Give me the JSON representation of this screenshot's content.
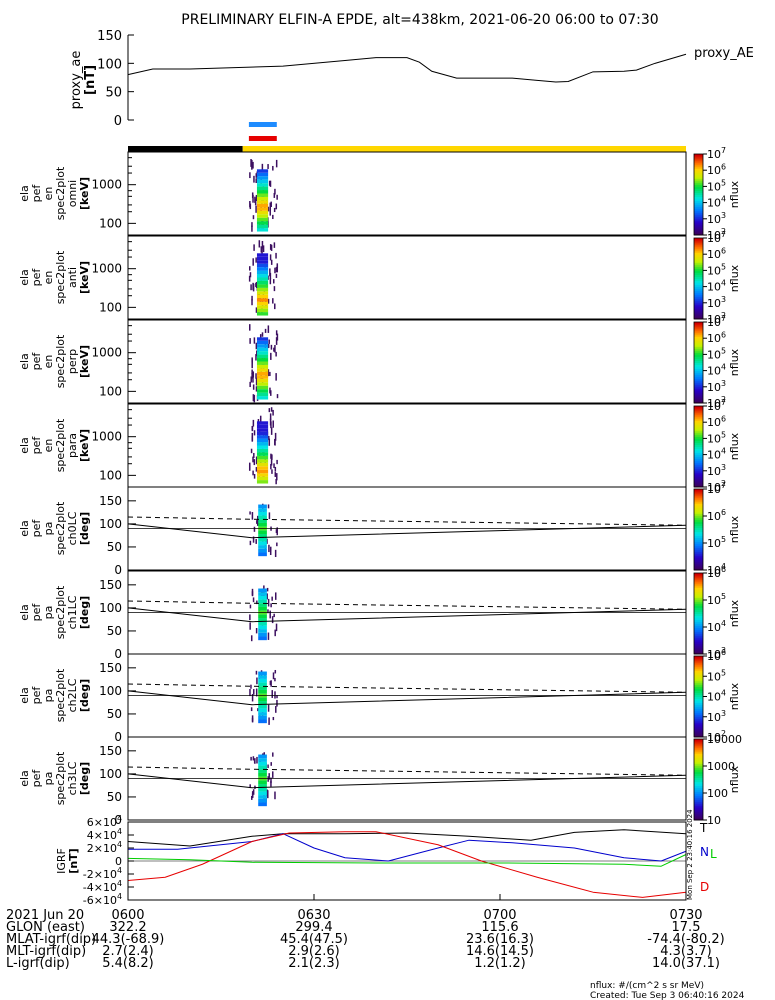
{
  "title": "PRELIMINARY ELFIN-A EPDE, alt=438km, 2021-06-20 06:00 to 07:30",
  "colorbar_unit": "nflux",
  "footer": {
    "units": "nflux: #/(cm^2 s sr MeV)",
    "created": "Created: Tue Sep  3 06:40:16 2024",
    "vertical_stamp": "Mon Sep  2 23:40:16 2024"
  },
  "ephemeris": {
    "times": [
      "0600",
      "0630",
      "0700",
      "0730"
    ],
    "rows": [
      {
        "label": "2021 Jun 20",
        "values": [
          "0600",
          "0630",
          "0700",
          "0730"
        ]
      },
      {
        "label": "GLON (east)",
        "values": [
          "322.2",
          "299.4",
          "115.6",
          "17.5"
        ]
      },
      {
        "label": "MLAT-igrf(dip)",
        "values": [
          "44.3(-68.9)",
          "45.4(47.5)",
          "23.6(16.3)",
          "-74.4(-80.2)"
        ]
      },
      {
        "label": "MLT-igrf(dip)",
        "values": [
          "2.7(2.4)",
          "2.9(2.6)",
          "14.6(14.5)",
          "4.3(3.7)"
        ]
      },
      {
        "label": "L-igrf(dip)",
        "values": [
          "5.4(8.2)",
          "2.1(2.3)",
          "1.2(1.2)",
          "14.0(37.1)"
        ]
      }
    ]
  },
  "chart_data": [
    {
      "type": "line",
      "name": "proxy_ae",
      "ylabel": [
        "proxy_ae",
        "[nT]"
      ],
      "legend": "proxy_AE",
      "ylim": [
        0,
        150
      ],
      "yticks": [
        "0",
        "50",
        "100",
        "150"
      ],
      "x_minutes": [
        0,
        4,
        10,
        25,
        35,
        40,
        45,
        47,
        49,
        53,
        56,
        58,
        62,
        66,
        69,
        71,
        75,
        80,
        82,
        85,
        90
      ],
      "values": [
        80,
        90,
        90,
        95,
        105,
        110,
        110,
        102,
        86,
        74,
        74,
        74,
        74,
        70,
        67,
        68,
        85,
        86,
        88,
        100,
        116
      ],
      "color": "#000000"
    },
    {
      "type": "bar",
      "name": "status-bars",
      "segments": [
        {
          "start_min": 0,
          "end_min": 18.5,
          "color": "#000000"
        },
        {
          "start_min": 18.5,
          "end_min": 90,
          "color": "#ffd700"
        }
      ],
      "indicators": [
        {
          "start_min": 19.5,
          "end_min": 24.0,
          "color": "#1e8cff"
        },
        {
          "start_min": 19.5,
          "end_min": 24.0,
          "color": "#e60000"
        }
      ]
    },
    {
      "type": "heatmap",
      "name": "spectrogram-energy-omni",
      "ylabel": [
        "ela",
        "pef",
        "en",
        "spec2plot",
        "omni",
        "[keV]"
      ],
      "yaxis": "log",
      "ylim_keV": [
        50,
        7000
      ],
      "yticks": [
        "100",
        "1000"
      ],
      "colorbar": {
        "min_exp": 2,
        "max_exp": 7,
        "labels": [
          "10^2",
          "10^3",
          "10^4",
          "10^5",
          "10^6",
          "10^7"
        ]
      },
      "burst_x_minutes": [
        19.5,
        24.0
      ],
      "peak_energy_keV": [
        100,
        700
      ]
    },
    {
      "type": "heatmap",
      "name": "spectrogram-energy-anti",
      "ylabel": [
        "ela",
        "pef",
        "en",
        "spec2plot",
        "anti",
        "[keV]"
      ],
      "yaxis": "log",
      "ylim_keV": [
        50,
        7000
      ],
      "yticks": [
        "100",
        "1000"
      ],
      "colorbar": {
        "min_exp": 2,
        "max_exp": 7,
        "labels": [
          "10^2",
          "10^3",
          "10^4",
          "10^5",
          "10^6",
          "10^7"
        ]
      },
      "burst_x_minutes": [
        19.5,
        24.0
      ],
      "peak_energy_keV": [
        80,
        300
      ]
    },
    {
      "type": "heatmap",
      "name": "spectrogram-energy-perp",
      "ylabel": [
        "ela",
        "pef",
        "en",
        "spec2plot",
        "perp",
        "[keV]"
      ],
      "yaxis": "log",
      "ylim_keV": [
        50,
        7000
      ],
      "yticks": [
        "100",
        "1000"
      ],
      "colorbar": {
        "min_exp": 2,
        "max_exp": 7,
        "labels": [
          "10^2",
          "10^3",
          "10^4",
          "10^5",
          "10^6",
          "10^7"
        ]
      },
      "burst_x_minutes": [
        19.5,
        24.0
      ],
      "peak_energy_keV": [
        100,
        700
      ]
    },
    {
      "type": "heatmap",
      "name": "spectrogram-energy-para",
      "ylabel": [
        "ela",
        "pef",
        "en",
        "spec2plot",
        "para",
        "[keV]"
      ],
      "yaxis": "log",
      "ylim_keV": [
        50,
        7000
      ],
      "yticks": [
        "100",
        "1000"
      ],
      "colorbar": {
        "min_exp": 2,
        "max_exp": 7,
        "labels": [
          "10^2",
          "10^3",
          "10^4",
          "10^5",
          "10^6",
          "10^7"
        ]
      },
      "burst_x_minutes": [
        19.5,
        24.0
      ],
      "peak_energy_keV": [
        70,
        250
      ]
    },
    {
      "type": "heatmap",
      "name": "spectrogram-pitch-ch0LC",
      "ylabel": [
        "ela",
        "pef",
        "pa",
        "spec2plot",
        "ch0LC",
        "[deg]"
      ],
      "ylim_deg": [
        0,
        180
      ],
      "yticks": [
        "0",
        "50",
        "100",
        "150"
      ],
      "colorbar": {
        "min_exp": 4,
        "max_exp": 7,
        "labels": [
          "10^4",
          "10^5",
          "10^6",
          "10^7"
        ]
      },
      "burst_x_minutes": [
        19.5,
        24.0
      ],
      "lines": {
        "solid": {
          "x_minutes": [
            0,
            20,
            90
          ],
          "deg": [
            100,
            70,
            97
          ]
        },
        "dashed": {
          "x_minutes": [
            0,
            20,
            90
          ],
          "deg": [
            115,
            110,
            97
          ]
        }
      }
    },
    {
      "type": "heatmap",
      "name": "spectrogram-pitch-ch1LC",
      "ylabel": [
        "ela",
        "pef",
        "pa",
        "spec2plot",
        "ch1LC",
        "[deg]"
      ],
      "ylim_deg": [
        0,
        180
      ],
      "yticks": [
        "0",
        "50",
        "100",
        "150"
      ],
      "colorbar": {
        "min_exp": 3,
        "max_exp": 6,
        "labels": [
          "10^3",
          "10^4",
          "10^5",
          "10^6"
        ]
      },
      "burst_x_minutes": [
        19.5,
        24.0
      ],
      "lines": {
        "solid": {
          "x_minutes": [
            0,
            20,
            90
          ],
          "deg": [
            100,
            70,
            97
          ]
        },
        "dashed": {
          "x_minutes": [
            0,
            20,
            90
          ],
          "deg": [
            115,
            110,
            97
          ]
        }
      }
    },
    {
      "type": "heatmap",
      "name": "spectrogram-pitch-ch2LC",
      "ylabel": [
        "ela",
        "pef",
        "pa",
        "spec2plot",
        "ch2LC",
        "[deg]"
      ],
      "ylim_deg": [
        0,
        180
      ],
      "yticks": [
        "0",
        "50",
        "100",
        "150"
      ],
      "colorbar": {
        "min_exp": 2,
        "max_exp": 6,
        "labels": [
          "10^2",
          "10^3",
          "10^4",
          "10^5",
          "10^6"
        ]
      },
      "burst_x_minutes": [
        19.5,
        24.0
      ],
      "lines": {
        "solid": {
          "x_minutes": [
            0,
            20,
            90
          ],
          "deg": [
            100,
            70,
            97
          ]
        },
        "dashed": {
          "x_minutes": [
            0,
            20,
            90
          ],
          "deg": [
            115,
            110,
            97
          ]
        }
      }
    },
    {
      "type": "heatmap",
      "name": "spectrogram-pitch-ch3LC",
      "ylabel": [
        "ela",
        "pef",
        "pa",
        "spec2plot",
        "ch3LC",
        "[deg]"
      ],
      "ylim_deg": [
        0,
        180
      ],
      "yticks": [
        "0",
        "50",
        "100",
        "150"
      ],
      "colorbar": {
        "min_value": 10,
        "max_value": 10000,
        "labels": [
          "10",
          "100",
          "1000",
          "10000"
        ]
      },
      "burst_x_minutes": [
        19.5,
        24.0
      ],
      "lines": {
        "solid": {
          "x_minutes": [
            0,
            20,
            90
          ],
          "deg": [
            100,
            70,
            97
          ]
        },
        "dashed": {
          "x_minutes": [
            0,
            20,
            90
          ],
          "deg": [
            115,
            110,
            97
          ]
        }
      }
    },
    {
      "type": "line",
      "name": "igrf-field",
      "ylabel": [
        "IGRF",
        "[nT]"
      ],
      "ylim": [
        -60000,
        60000
      ],
      "yticks": [
        "-6×10^4",
        "-4×10^4",
        "-2×10^4",
        "0",
        "2×10^4",
        "4×10^4",
        "6×10^4"
      ],
      "series": [
        {
          "name": "T",
          "color": "#000000",
          "x_minutes": [
            0,
            10,
            20,
            25,
            35,
            45,
            55,
            65,
            72,
            80,
            90
          ],
          "values": [
            30000,
            23000,
            38000,
            42000,
            42000,
            43000,
            38000,
            32000,
            44000,
            48000,
            42000
          ]
        },
        {
          "name": "N",
          "color": "#0000cc",
          "x_minutes": [
            0,
            8,
            20,
            25,
            30,
            35,
            42,
            50,
            55,
            62,
            72,
            80,
            86,
            90
          ],
          "values": [
            18000,
            18000,
            30000,
            42000,
            20000,
            5000,
            0,
            20000,
            32000,
            28000,
            20000,
            5000,
            0,
            15000
          ]
        },
        {
          "name": "D",
          "color": "#e60000",
          "x_minutes": [
            0,
            6,
            12,
            20,
            26,
            35,
            40,
            50,
            57,
            66,
            75,
            83,
            90
          ],
          "values": [
            -30000,
            -25000,
            -5000,
            30000,
            43000,
            45000,
            45000,
            25000,
            0,
            -25000,
            -48000,
            -56000,
            -48000
          ]
        },
        {
          "name": "L",
          "color": "#00cc00",
          "x_minutes": [
            0,
            10,
            20,
            40,
            60,
            80,
            86,
            90
          ],
          "values": [
            4000,
            2000,
            -2000,
            -3000,
            -3000,
            -5000,
            -8000,
            10000
          ]
        }
      ]
    }
  ]
}
